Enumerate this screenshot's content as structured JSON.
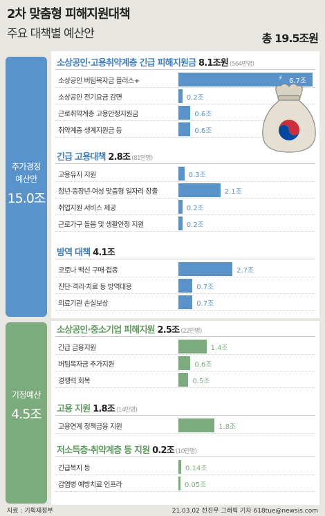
{
  "header": {
    "title": "2차 맞춤형 피해지원대책",
    "subtitle": "주요 대책별 예산안",
    "total": "총 19.5조원"
  },
  "side_labels": {
    "extra": {
      "label_line1": "추가경정",
      "label_line2": "예산안",
      "amount": "15.0조"
    },
    "existing": {
      "label": "기정예산",
      "amount": "4.5조"
    }
  },
  "sections": [
    {
      "name": "소상공인·고용취약계층 긴급 피해지원금",
      "amount": "8.1조원",
      "count": "(564만명)"
    },
    {
      "name": "긴급 고용대책",
      "amount": "2.8조",
      "count": "(81만명)"
    },
    {
      "name": "방역 대책",
      "amount": "4.1조",
      "count": ""
    },
    {
      "name": "소상공인·중소기업 피해지원",
      "amount": "2.5조",
      "count": "(22만명)"
    },
    {
      "name": "고용 지원",
      "amount": "1.8조",
      "count": "(14만명)"
    },
    {
      "name": "저소득층·취약계층 등 지원",
      "amount": "0.2조",
      "count": "(10만명)"
    }
  ],
  "footer": {
    "source": "자료 : 기획재정부",
    "credit": "21.03.02 전진우 그래픽 기자 618tue@newsis.com"
  },
  "colors": {
    "blue": "#5a93c9",
    "green": "#7cab7e",
    "background": "#e9e7e2"
  },
  "chart_data": {
    "type": "bar",
    "orientation": "horizontal",
    "unit": "조",
    "max_value": 6.7,
    "items": [
      {
        "section": 0,
        "label": "소상공인 버팀목자금 플러스+",
        "value": 6.7,
        "display": "6.7조",
        "group": "extra"
      },
      {
        "section": 0,
        "label": "소상공인 전기요금 감면",
        "value": 0.2,
        "display": "0.2조",
        "group": "extra"
      },
      {
        "section": 0,
        "label": "근로취약계층 고용안정지원금",
        "value": 0.6,
        "display": "0.6조",
        "group": "extra"
      },
      {
        "section": 0,
        "label": "취약계층 생계지원금 등",
        "value": 0.6,
        "display": "0.6조",
        "group": "extra"
      },
      {
        "section": 1,
        "label": "고용유지 지원",
        "value": 0.3,
        "display": "0.3조",
        "group": "extra"
      },
      {
        "section": 1,
        "label": "청년·중장년·여성 맞춤형 일자리 창출",
        "value": 2.1,
        "display": "2.1조",
        "group": "extra"
      },
      {
        "section": 1,
        "label": "취업지원 서비스 제공",
        "value": 0.2,
        "display": "0.2조",
        "group": "extra"
      },
      {
        "section": 1,
        "label": "근로가구 돌봄 및 생활안정 지원",
        "value": 0.2,
        "display": "0.2조",
        "group": "extra"
      },
      {
        "section": 2,
        "label": "코로나 백신 구매·접종",
        "value": 2.7,
        "display": "2.7조",
        "group": "extra"
      },
      {
        "section": 2,
        "label": "진단·격리·치료 등 방역대응",
        "value": 0.7,
        "display": "0.7조",
        "group": "extra"
      },
      {
        "section": 2,
        "label": "의료기관 손실보상",
        "value": 0.7,
        "display": "0.7조",
        "group": "extra"
      },
      {
        "section": 3,
        "label": "긴급 금융지원",
        "value": 1.4,
        "display": "1.4조",
        "group": "existing"
      },
      {
        "section": 3,
        "label": "버팀목자금 추가지원",
        "value": 0.6,
        "display": "0.6조",
        "group": "existing"
      },
      {
        "section": 3,
        "label": "경쟁력 회복",
        "value": 0.5,
        "display": "0.5조",
        "group": "existing"
      },
      {
        "section": 4,
        "label": "고용연계 정책금융 지원",
        "value": 1.8,
        "display": "1.8조",
        "group": "existing"
      },
      {
        "section": 5,
        "label": "긴급복지 등",
        "value": 0.14,
        "display": "0.14조",
        "group": "existing"
      },
      {
        "section": 5,
        "label": "감염병 예방치료 인프라",
        "value": 0.05,
        "display": "0.05조",
        "group": "existing"
      }
    ]
  }
}
